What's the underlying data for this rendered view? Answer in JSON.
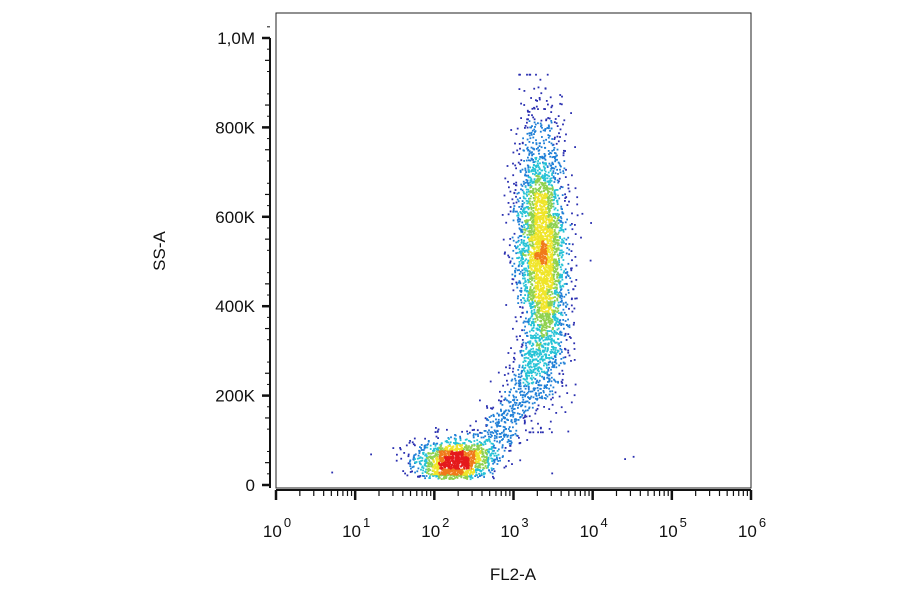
{
  "chart_data": {
    "type": "scatter",
    "title": "",
    "xlabel": "FL2-A",
    "ylabel": "SS-A",
    "x_scale": "log",
    "xlim": [
      1,
      1000000
    ],
    "x_ticks": [
      {
        "value": 1,
        "base": "10",
        "exp": "0"
      },
      {
        "value": 10,
        "base": "10",
        "exp": "1"
      },
      {
        "value": 100,
        "base": "10",
        "exp": "2"
      },
      {
        "value": 1000,
        "base": "10",
        "exp": "3"
      },
      {
        "value": 10000,
        "base": "10",
        "exp": "4"
      },
      {
        "value": 100000,
        "base": "10",
        "exp": "5"
      },
      {
        "value": 1000000,
        "base": "10",
        "exp": "6"
      }
    ],
    "ylim": [
      0,
      1050000
    ],
    "y_ticks": [
      {
        "value": 0,
        "label": "0"
      },
      {
        "value": 200000,
        "label": "200K"
      },
      {
        "value": 400000,
        "label": "400K"
      },
      {
        "value": 600000,
        "label": "600K"
      },
      {
        "value": 800000,
        "label": "800K"
      },
      {
        "value": 1000000,
        "label": "1,0M"
      }
    ],
    "grid": false,
    "density_colormap": [
      "#2a2fb0",
      "#1f7fd6",
      "#26c3d6",
      "#8fd14f",
      "#f0e52a",
      "#f07a1a",
      "#e41a1c"
    ],
    "populations": [
      {
        "log10_x_center": 2.2,
        "log10_x_sd": 0.25,
        "y_center": 60000,
        "y_sd": 22000,
        "relative_count": 0.18
      },
      {
        "log10_x_center": 3.35,
        "log10_x_sd": 0.16,
        "y_center": 520000,
        "y_sd": 140000,
        "relative_count": 0.62
      },
      {
        "log10_x_center": 2.8,
        "log10_x_sd": 0.3,
        "y_center": 170000,
        "y_sd": 70000,
        "relative_count": 0.2
      }
    ],
    "outliers": [
      {
        "x": 25000,
        "y": 60000
      },
      {
        "x": 32000,
        "y": 65000
      },
      {
        "x": 5,
        "y": 30000
      },
      {
        "x": 3000,
        "y": 28000
      }
    ]
  }
}
